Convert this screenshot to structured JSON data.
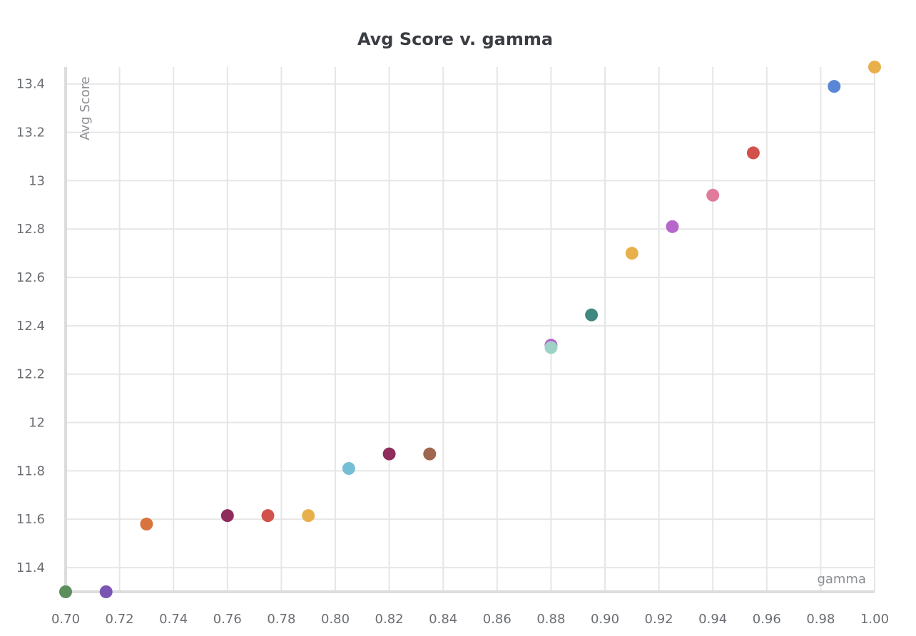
{
  "chart_data": {
    "type": "scatter",
    "title": "Avg Score v. gamma",
    "xlabel": "gamma",
    "ylabel": "Avg Score",
    "xlim": [
      0.7,
      1.0
    ],
    "ylim": [
      11.3,
      13.47
    ],
    "grid": true,
    "x_ticks": [
      "0.70",
      "0.72",
      "0.74",
      "0.76",
      "0.78",
      "0.80",
      "0.82",
      "0.84",
      "0.86",
      "0.88",
      "0.90",
      "0.92",
      "0.94",
      "0.96",
      "0.98",
      "1.00"
    ],
    "x_tick_values": [
      0.7,
      0.72,
      0.74,
      0.76,
      0.78,
      0.8,
      0.82,
      0.84,
      0.86,
      0.88,
      0.9,
      0.92,
      0.94,
      0.96,
      0.98,
      1.0
    ],
    "y_ticks": [
      "11.4",
      "11.6",
      "11.8",
      "12",
      "12.2",
      "12.4",
      "12.6",
      "12.8",
      "13",
      "13.2",
      "13.4"
    ],
    "y_tick_values": [
      11.4,
      11.6,
      11.8,
      12.0,
      12.2,
      12.4,
      12.6,
      12.8,
      13.0,
      13.2,
      13.4
    ],
    "points": [
      {
        "x": 0.7,
        "y": 11.3,
        "color": "#5b8f5e"
      },
      {
        "x": 0.715,
        "y": 11.3,
        "color": "#7b55b3"
      },
      {
        "x": 0.73,
        "y": 11.58,
        "color": "#d9743f"
      },
      {
        "x": 0.76,
        "y": 11.615,
        "color": "#8e2c5b"
      },
      {
        "x": 0.775,
        "y": 11.615,
        "color": "#d2514a"
      },
      {
        "x": 0.79,
        "y": 11.615,
        "color": "#e8b04b"
      },
      {
        "x": 0.805,
        "y": 11.81,
        "color": "#74bfd6"
      },
      {
        "x": 0.82,
        "y": 11.87,
        "color": "#8e2c5b"
      },
      {
        "x": 0.835,
        "y": 11.87,
        "color": "#a0664f"
      },
      {
        "x": 0.88,
        "y": 12.32,
        "color": "#b766cc"
      },
      {
        "x": 0.88,
        "y": 12.31,
        "color": "#9fd2c6"
      },
      {
        "x": 0.895,
        "y": 12.445,
        "color": "#3f8a80"
      },
      {
        "x": 0.91,
        "y": 12.7,
        "color": "#e8b04b"
      },
      {
        "x": 0.925,
        "y": 12.81,
        "color": "#b766cc"
      },
      {
        "x": 0.94,
        "y": 12.94,
        "color": "#e07c9a"
      },
      {
        "x": 0.955,
        "y": 13.115,
        "color": "#d2514a"
      },
      {
        "x": 0.985,
        "y": 13.39,
        "color": "#5a86d6"
      },
      {
        "x": 1.0,
        "y": 13.47,
        "color": "#e8b04b"
      }
    ]
  }
}
